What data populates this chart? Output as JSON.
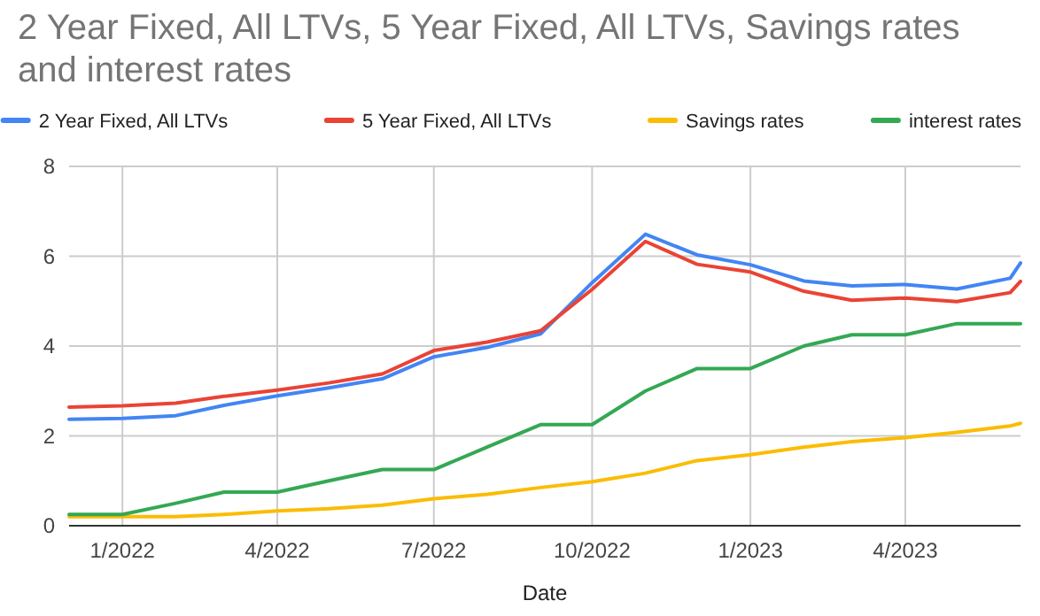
{
  "chart_data": {
    "type": "line",
    "title": "2 Year Fixed, All LTVs, 5 Year Fixed, All LTVs, Savings rates and interest rates",
    "xlabel": "Date",
    "x": [
      "2021-12-01",
      "2022-01-01",
      "2022-02-01",
      "2022-03-01",
      "2022-04-01",
      "2022-05-01",
      "2022-06-01",
      "2022-07-01",
      "2022-08-01",
      "2022-09-01",
      "2022-10-01",
      "2022-11-01",
      "2022-12-01",
      "2023-01-01",
      "2023-02-01",
      "2023-03-01",
      "2023-04-01",
      "2023-05-01",
      "2023-06-01",
      "2023-06-07"
    ],
    "series": [
      {
        "name": "2 Year Fixed, All LTVs",
        "color": "#4285f4",
        "values": [
          2.37,
          2.39,
          2.45,
          2.68,
          2.89,
          3.07,
          3.27,
          3.76,
          3.97,
          4.27,
          5.41,
          6.49,
          6.03,
          5.81,
          5.45,
          5.34,
          5.37,
          5.27,
          5.51,
          5.85
        ]
      },
      {
        "name": "5 Year Fixed, All LTVs",
        "color": "#ea4335",
        "values": [
          2.64,
          2.67,
          2.73,
          2.88,
          3.02,
          3.18,
          3.38,
          3.9,
          4.09,
          4.34,
          5.26,
          6.33,
          5.82,
          5.65,
          5.22,
          5.02,
          5.07,
          4.99,
          5.19,
          5.44
        ]
      },
      {
        "name": "Savings rates",
        "color": "#fbbc04",
        "values": [
          0.2,
          0.2,
          0.2,
          0.25,
          0.33,
          0.38,
          0.46,
          0.6,
          0.7,
          0.85,
          0.98,
          1.17,
          1.45,
          1.58,
          1.75,
          1.87,
          1.96,
          2.08,
          2.22,
          2.28
        ]
      },
      {
        "name": "interest rates",
        "color": "#34a853",
        "values": [
          0.25,
          0.25,
          0.5,
          0.75,
          0.75,
          1,
          1.25,
          1.25,
          1.75,
          2.25,
          2.25,
          3,
          3.5,
          3.5,
          4,
          4.25,
          4.25,
          4.5,
          4.5,
          4.5
        ]
      }
    ],
    "xlim": [
      "2021-12-01",
      "2023-06-07"
    ],
    "xticks": [
      {
        "value": "2022-01-01",
        "label": "1/2022"
      },
      {
        "value": "2022-04-01",
        "label": "4/2022"
      },
      {
        "value": "2022-07-01",
        "label": "7/2022"
      },
      {
        "value": "2022-10-01",
        "label": "10/2022"
      },
      {
        "value": "2023-01-01",
        "label": "1/2023"
      },
      {
        "value": "2023-04-01",
        "label": "4/2023"
      }
    ],
    "ylim": [
      0,
      8
    ],
    "yticks": [
      0,
      2,
      4,
      6,
      8
    ],
    "grid": true,
    "legend": "top",
    "marker": "none",
    "line_style": "solid"
  }
}
